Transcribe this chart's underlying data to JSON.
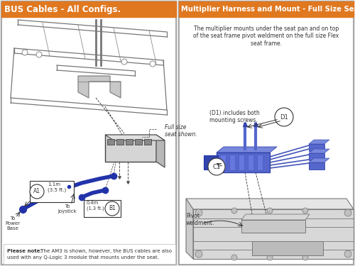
{
  "fig_width": 5.0,
  "fig_height": 3.75,
  "dpi": 100,
  "bg_color": "#e8e8e8",
  "panel_bg": "#ffffff",
  "border_color": "#999999",
  "orange_color": "#e07820",
  "white": "#ffffff",
  "dark": "#333333",
  "mid_gray": "#999999",
  "light_gray": "#cccccc",
  "blue": "#2233aa",
  "blue_mid": "#4455bb",
  "panel_left_title": "BUS Cables - All Configs.",
  "panel_right_title": "Multiplier Harness and Mount - Full Size Seats",
  "right_desc": "The multiplier mounts under the seat pan and on top\nof the seat frame pivot weldment on the full size Flex\nseat frame.",
  "text_seat": "Full size\nseat shown.",
  "text_a1": "1.1m\n(3.5 ft.)",
  "text_b1": "0.4m\n(1.3 ft.)",
  "text_joystick": "To\nJoystick",
  "text_power": "To\nPower\nBase",
  "text_d1": "(D1) includes both\nmounting screws.",
  "text_pivot": "Pivot\nweldment.",
  "note_bold": "Please note:",
  "note_rest": " The AM3 is shown, however, the BUS cables are also\nused with any Q-Logic 3 module that mounts under the seat."
}
